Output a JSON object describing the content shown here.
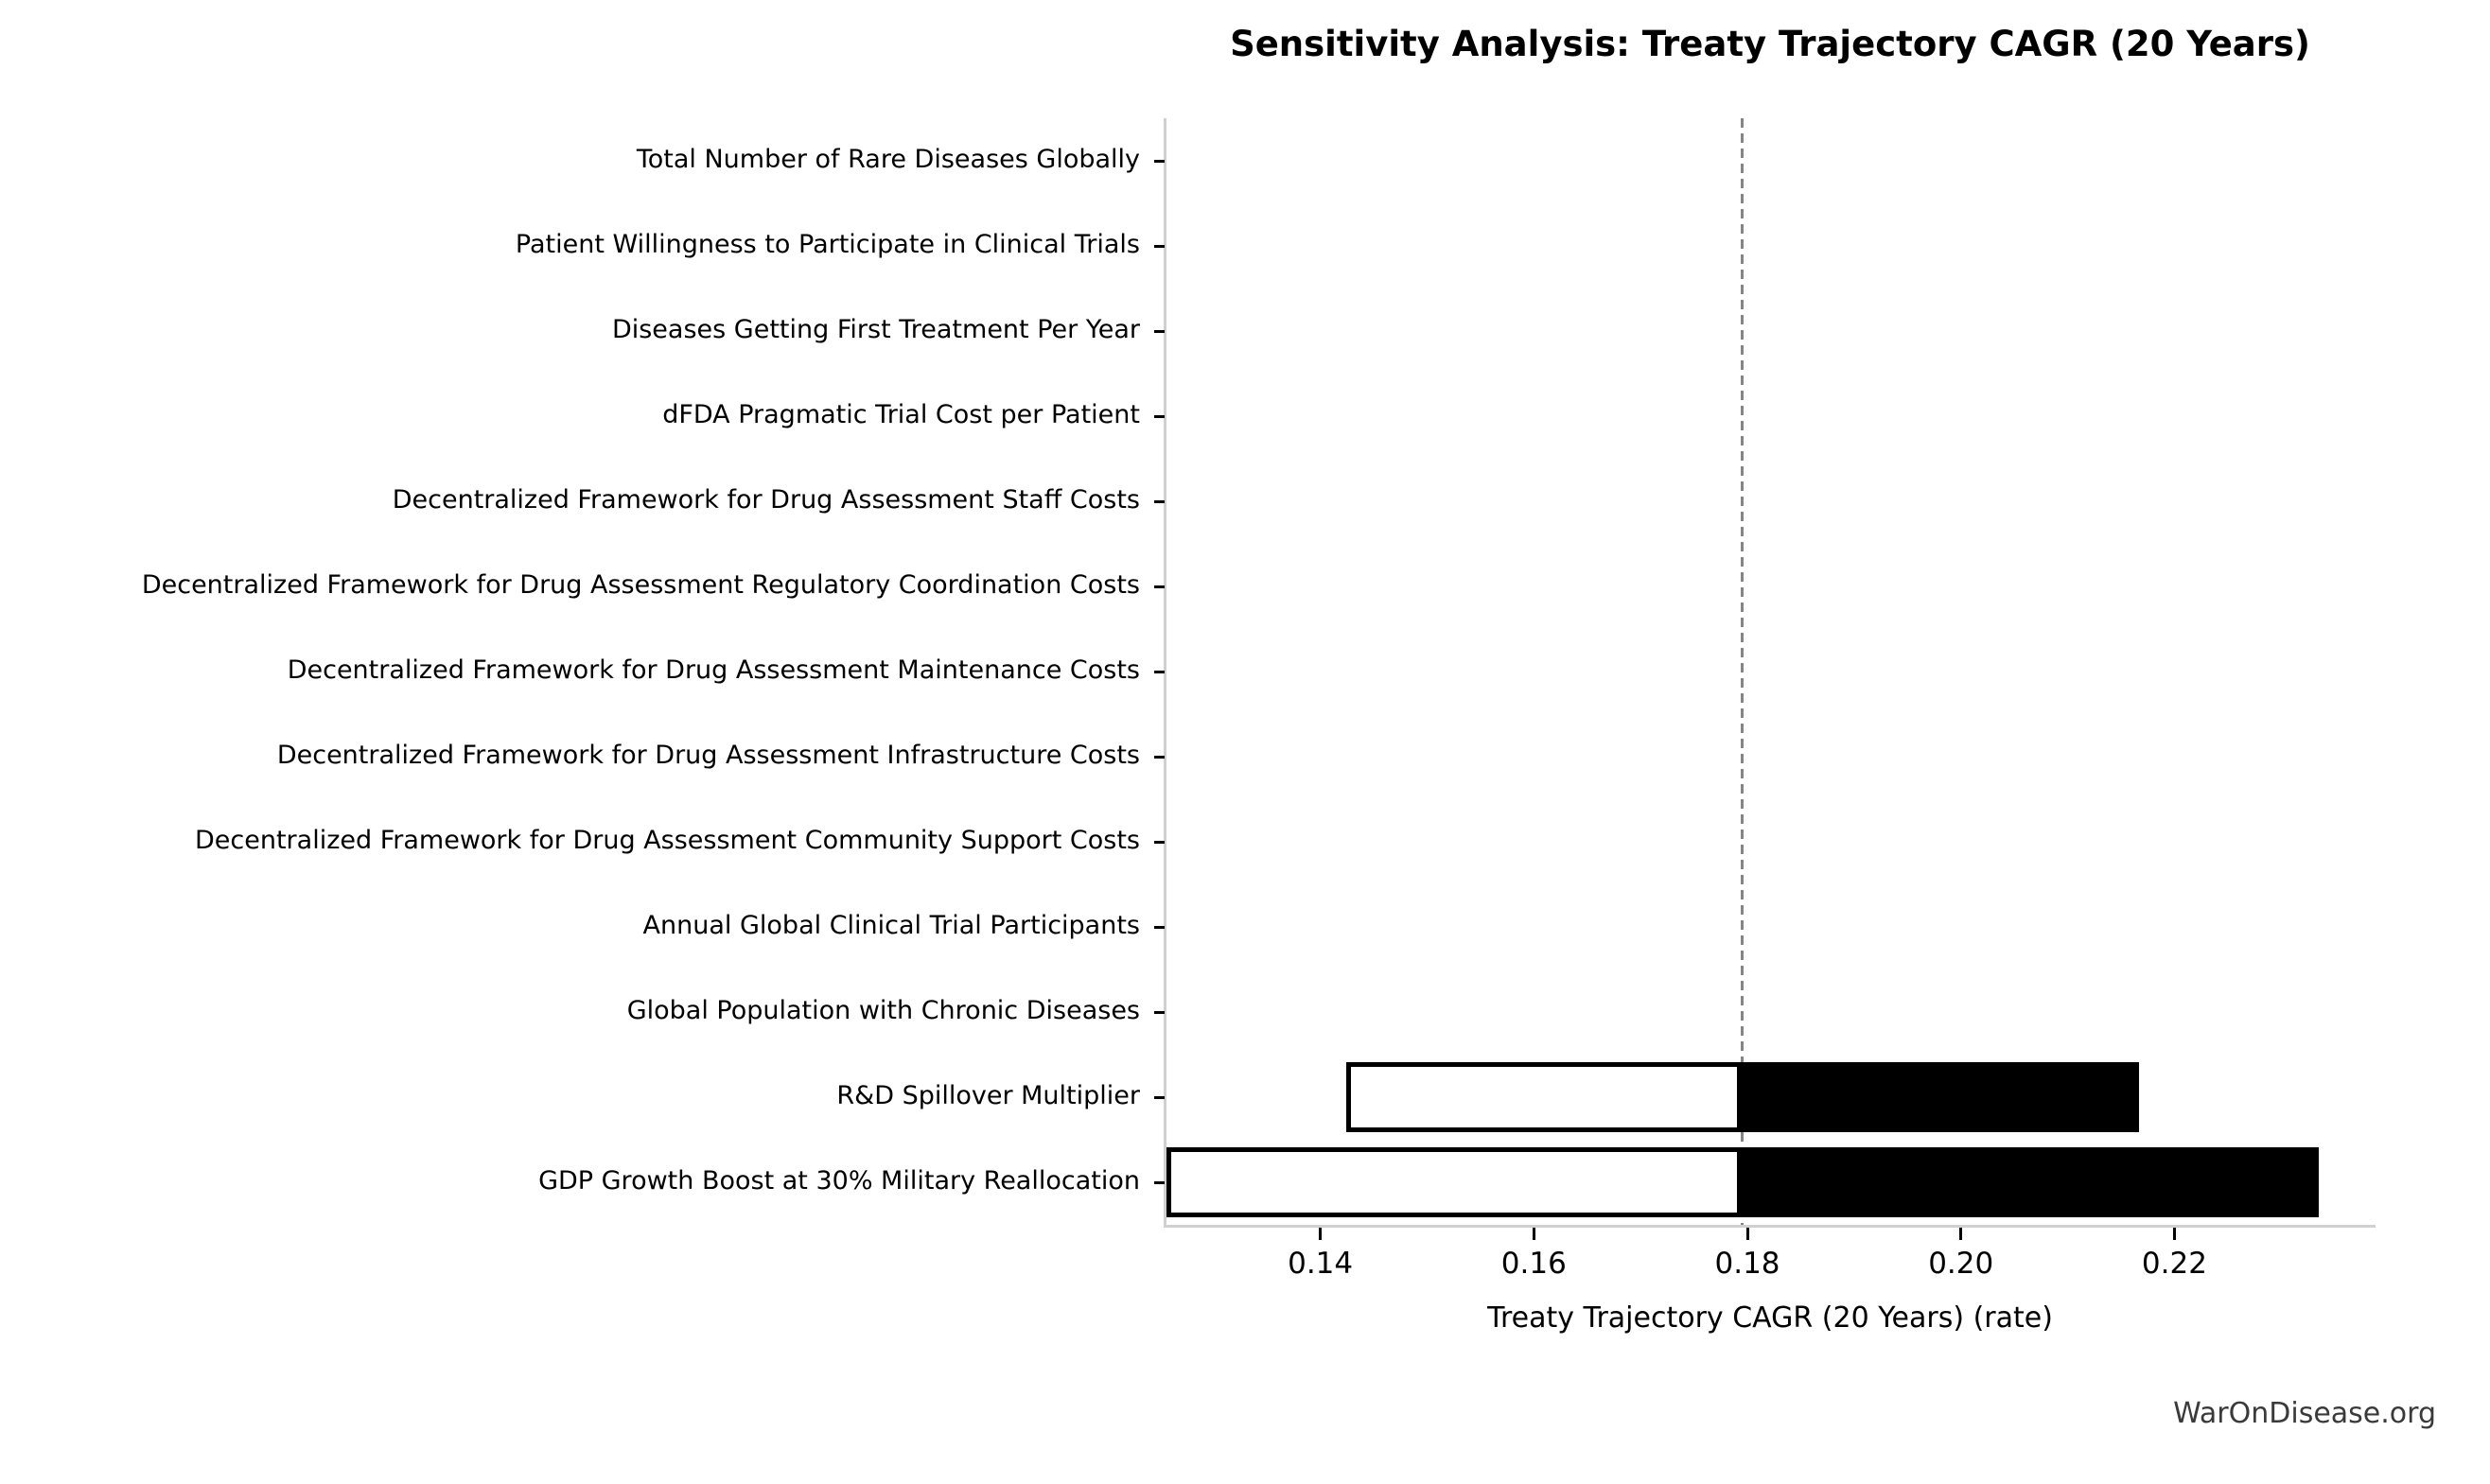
{
  "branding": {
    "watermark": "WarOnDisease.org"
  },
  "chart_data": {
    "type": "bar",
    "orientation": "horizontal",
    "subtype": "tornado-sensitivity",
    "title": "Sensitivity Analysis: Treaty Trajectory CAGR (20 Years)",
    "xlabel": "Treaty Trajectory CAGR (20 Years) (rate)",
    "xlim": [
      0.1255,
      0.23875
    ],
    "xticks": [
      "0.14",
      "0.16",
      "0.18",
      "0.20",
      "0.22"
    ],
    "baseline": 0.1795,
    "grid": false,
    "legend": "none",
    "colors": {
      "low_bar_fill": "#ffffff",
      "high_bar_fill": "#000000",
      "bar_edge": "#000000",
      "baseline_line": "#858585",
      "spine": "#d0d0d0",
      "text": "#000000",
      "watermark_text": "#3a3a3a"
    },
    "categories": [
      "Total Number of Rare Diseases Globally",
      "Patient Willingness to Participate in Clinical Trials",
      "Diseases Getting First Treatment Per Year",
      "dFDA Pragmatic Trial Cost per Patient",
      "Decentralized Framework for Drug Assessment Staff Costs",
      "Decentralized Framework for Drug Assessment Regulatory Coordination Costs",
      "Decentralized Framework for Drug Assessment Maintenance Costs",
      "Decentralized Framework for Drug Assessment Infrastructure Costs",
      "Decentralized Framework for Drug Assessment Community Support Costs",
      "Annual Global Clinical Trial Participants",
      "Global Population with Chronic Diseases",
      "R&D Spillover Multiplier",
      "GDP Growth Boost at 30% Military Reallocation"
    ],
    "series": [
      {
        "name": "low",
        "values": [
          null,
          null,
          null,
          null,
          null,
          null,
          null,
          null,
          null,
          null,
          null,
          0.1424,
          0.1256
        ]
      },
      {
        "name": "high",
        "values": [
          null,
          null,
          null,
          null,
          null,
          null,
          null,
          null,
          null,
          null,
          null,
          0.2167,
          0.2335
        ]
      }
    ]
  }
}
